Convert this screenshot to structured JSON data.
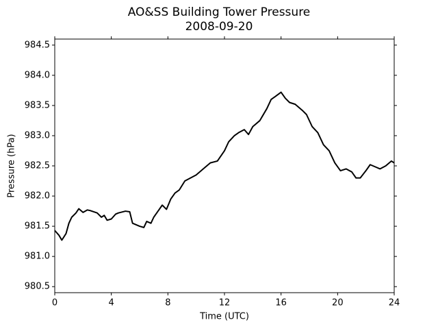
{
  "chart_data": {
    "type": "line",
    "title": "AO&SS Building Tower Pressure",
    "subtitle": "2008-09-20",
    "x_label": "Time (UTC)",
    "y_label": "Pressure (hPa)",
    "x": [
      0,
      0.3,
      0.5,
      0.8,
      1.0,
      1.2,
      1.5,
      1.7,
      2.0,
      2.3,
      2.5,
      3.0,
      3.3,
      3.5,
      3.7,
      4.0,
      4.3,
      4.5,
      5.0,
      5.3,
      5.5,
      6.0,
      6.3,
      6.5,
      6.8,
      7.0,
      7.3,
      7.6,
      7.9,
      8.2,
      8.5,
      8.8,
      9.2,
      9.6,
      10.0,
      10.5,
      11.0,
      11.5,
      12.0,
      12.3,
      12.7,
      13.0,
      13.4,
      13.7,
      14.0,
      14.5,
      15.0,
      15.3,
      15.6,
      16.0,
      16.3,
      16.6,
      17.0,
      17.5,
      17.8,
      18.2,
      18.6,
      19.0,
      19.4,
      19.8,
      20.2,
      20.6,
      21.0,
      21.3,
      21.6,
      22.0,
      22.3,
      22.7,
      23.0,
      23.4,
      23.8,
      24.0
    ],
    "series": [
      {
        "name": "Pressure",
        "color": "#000000",
        "values": [
          981.43,
          981.35,
          981.27,
          981.38,
          981.55,
          981.65,
          981.72,
          981.79,
          981.73,
          981.77,
          981.76,
          981.72,
          981.65,
          981.68,
          981.6,
          981.62,
          981.7,
          981.72,
          981.75,
          981.74,
          981.55,
          981.5,
          981.48,
          981.58,
          981.55,
          981.65,
          981.75,
          981.85,
          981.78,
          981.95,
          982.05,
          982.1,
          982.25,
          982.3,
          982.35,
          982.45,
          982.55,
          982.58,
          982.75,
          982.9,
          983.0,
          983.05,
          983.1,
          983.02,
          983.15,
          983.25,
          983.45,
          983.6,
          983.65,
          983.72,
          983.62,
          983.55,
          983.52,
          983.42,
          983.35,
          983.15,
          983.05,
          982.85,
          982.75,
          982.55,
          982.42,
          982.45,
          982.4,
          982.3,
          982.3,
          982.42,
          982.52,
          982.48,
          982.45,
          982.5,
          982.58,
          982.55
        ]
      }
    ],
    "xlim": [
      0,
      24
    ],
    "xticks": [
      0,
      4,
      8,
      12,
      16,
      20,
      24
    ],
    "ylim": [
      980.4,
      984.6
    ],
    "yticks": [
      980.5,
      {
        "value": 981,
        "label": "981.0"
      },
      981.5,
      {
        "value": 982,
        "label": "982.0"
      },
      982.5,
      {
        "value": 983,
        "label": "983.0"
      },
      983.5,
      {
        "value": 984,
        "label": "984.0"
      },
      984.5
    ],
    "grid": false
  }
}
